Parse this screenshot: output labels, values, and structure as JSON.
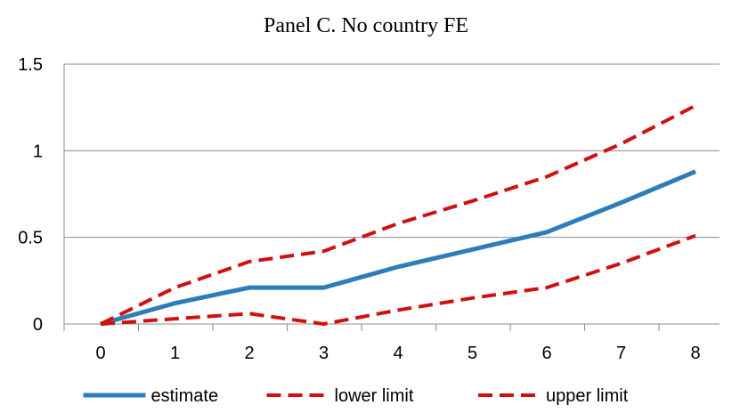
{
  "chart_data": {
    "type": "line",
    "title": "Panel C. No country FE",
    "x": [
      0,
      1,
      2,
      3,
      4,
      5,
      6,
      7,
      8
    ],
    "xlim": [
      0,
      8
    ],
    "ylim": [
      0,
      1.5
    ],
    "y_ticks": [
      "0",
      "0.5",
      "1",
      "1.5"
    ],
    "x_ticks": [
      "0",
      "1",
      "2",
      "3",
      "4",
      "5",
      "6",
      "7",
      "8"
    ],
    "grid": "horizontal",
    "legend_position": "bottom",
    "series": [
      {
        "name": "estimate",
        "color": "#2e7db8",
        "style": "solid",
        "values": [
          0,
          0.12,
          0.21,
          0.21,
          0.33,
          0.43,
          0.53,
          0.7,
          0.88
        ]
      },
      {
        "name": "lower limit",
        "color": "#d01010",
        "style": "dashed",
        "values": [
          0,
          0.03,
          0.06,
          0.0,
          0.08,
          0.15,
          0.21,
          0.35,
          0.51
        ]
      },
      {
        "name": "upper limit",
        "color": "#d01010",
        "style": "dashed",
        "values": [
          0,
          0.21,
          0.36,
          0.42,
          0.58,
          0.71,
          0.85,
          1.04,
          1.26
        ]
      }
    ]
  }
}
